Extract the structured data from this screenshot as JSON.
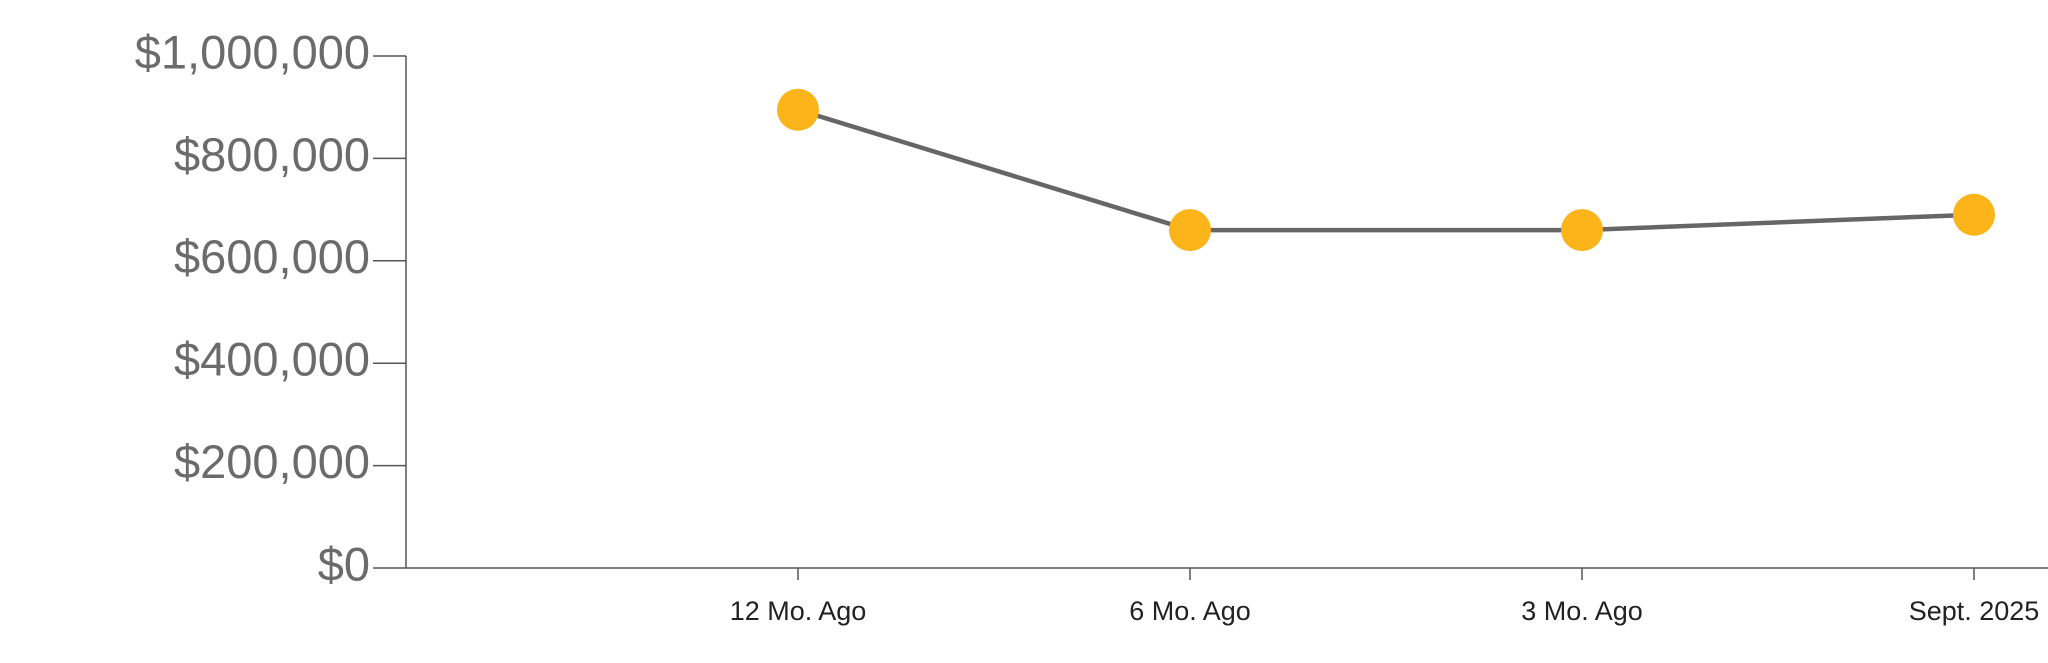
{
  "chart_data": {
    "type": "line",
    "categories": [
      "12 Mo. Ago",
      "6 Mo. Ago",
      "3 Mo. Ago",
      "Sept. 2025"
    ],
    "series": [
      {
        "color": "#fbb41a",
        "line_color": "#666666",
        "values": [
          895000,
          660000,
          660000,
          690000
        ]
      }
    ],
    "ylim": [
      0,
      1000000
    ],
    "yticks": [
      {
        "value": 0,
        "label": "$0"
      },
      {
        "value": 200000,
        "label": "$200,000"
      },
      {
        "value": 400000,
        "label": "$400,000"
      },
      {
        "value": 600000,
        "label": "$600,000"
      },
      {
        "value": 800000,
        "label": "$800,000"
      },
      {
        "value": 1000000,
        "label": "$1,000,000"
      }
    ]
  }
}
